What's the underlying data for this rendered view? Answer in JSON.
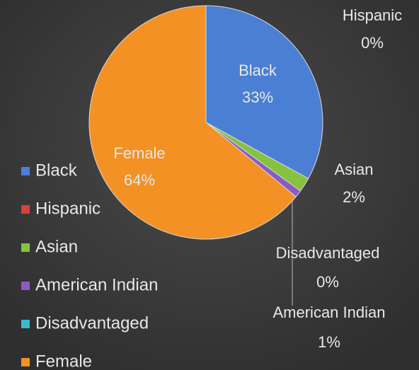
{
  "chart_data": {
    "type": "pie",
    "categories": [
      "Black",
      "Hispanic",
      "Asian",
      "American Indian",
      "Disadvantaged",
      "Female"
    ],
    "values": [
      33,
      0,
      2,
      1,
      0,
      64
    ],
    "value_labels": [
      "33%",
      "0%",
      "2%",
      "1%",
      "0%",
      "64%"
    ],
    "colors": [
      "#4a7fd4",
      "#d9413b",
      "#86c23f",
      "#8a5cc2",
      "#3cb8d0",
      "#f39125"
    ],
    "legend": "left"
  }
}
